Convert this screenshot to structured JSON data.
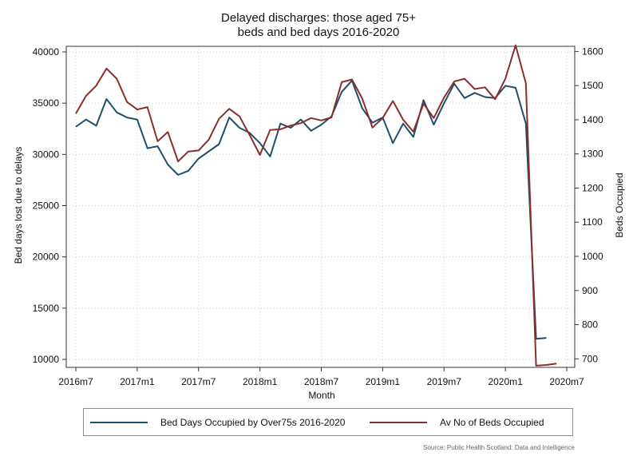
{
  "chart_data": {
    "type": "line",
    "title": "Delayed discharges: those aged 75+",
    "subtitle": "beds and bed days 2016-2020",
    "xlabel": "Month",
    "ylabel_left": "Bed days lost due to delays",
    "ylabel_right": "Beds Occupied",
    "x_ticks": [
      "2016m7",
      "2017m1",
      "2017m7",
      "2018m1",
      "2018m7",
      "2019m1",
      "2019m7",
      "2020m1",
      "2020m7"
    ],
    "x_range": [
      "2016m7",
      "2020m7"
    ],
    "y_left_ticks": [
      10000,
      15000,
      20000,
      25000,
      30000,
      35000,
      40000
    ],
    "y_left_range": [
      10000,
      40000
    ],
    "y_right_ticks": [
      700,
      800,
      900,
      1000,
      1100,
      1200,
      1300,
      1400,
      1500,
      1600
    ],
    "y_right_range": [
      675,
      1615
    ],
    "grid": true,
    "legend_position": "bottom",
    "months": [
      "2016m7",
      "2016m8",
      "2016m9",
      "2016m10",
      "2016m11",
      "2016m12",
      "2017m1",
      "2017m2",
      "2017m3",
      "2017m4",
      "2017m5",
      "2017m6",
      "2017m7",
      "2017m8",
      "2017m9",
      "2017m10",
      "2017m11",
      "2017m12",
      "2018m1",
      "2018m2",
      "2018m3",
      "2018m4",
      "2018m5",
      "2018m6",
      "2018m7",
      "2018m8",
      "2018m9",
      "2018m10",
      "2018m11",
      "2018m12",
      "2019m1",
      "2019m2",
      "2019m3",
      "2019m4",
      "2019m5",
      "2019m6",
      "2019m7",
      "2019m8",
      "2019m9",
      "2019m10",
      "2019m11",
      "2019m12",
      "2020m1",
      "2020m2",
      "2020m3",
      "2020m4",
      "2020m5",
      "2020m6"
    ],
    "series": [
      {
        "name": "Bed Days Occupied by Over75s 2016-2020",
        "axis": "left",
        "color": "#1f4e6b",
        "values": [
          32700,
          33400,
          32800,
          35400,
          34100,
          33600,
          33400,
          30600,
          30800,
          29000,
          28000,
          28400,
          29600,
          30300,
          31000,
          33600,
          32600,
          32100,
          31100,
          29800,
          33000,
          32600,
          33400,
          32300,
          32900,
          33700,
          36100,
          37200,
          34500,
          33100,
          33600,
          31100,
          33000,
          31700,
          35300,
          32900,
          35000,
          36900,
          35500,
          36000,
          35600,
          35500,
          36700,
          36500,
          33000,
          12000,
          12100,
          null
        ]
      },
      {
        "name": "Av No of Beds Occupied",
        "axis": "right",
        "color": "#8c2d2d",
        "values": [
          1418,
          1470,
          1500,
          1550,
          1520,
          1452,
          1430,
          1437,
          1337,
          1364,
          1278,
          1307,
          1310,
          1342,
          1403,
          1432,
          1410,
          1355,
          1297,
          1370,
          1372,
          1383,
          1390,
          1405,
          1398,
          1407,
          1510,
          1518,
          1462,
          1377,
          1405,
          1455,
          1400,
          1365,
          1447,
          1405,
          1465,
          1512,
          1520,
          1490,
          1495,
          1460,
          1520,
          1618,
          1507,
          680,
          682,
          686
        ]
      }
    ]
  },
  "legend": {
    "items": [
      "Bed Days Occupied by Over75s 2016-2020",
      "Av No of Beds Occupied"
    ]
  },
  "source": "Source: Public Health Scotland: Data and Intelligence",
  "colors": {
    "series1": "#1f4e6b",
    "series2": "#8c2d2d",
    "grid": "#cfcfcf"
  }
}
